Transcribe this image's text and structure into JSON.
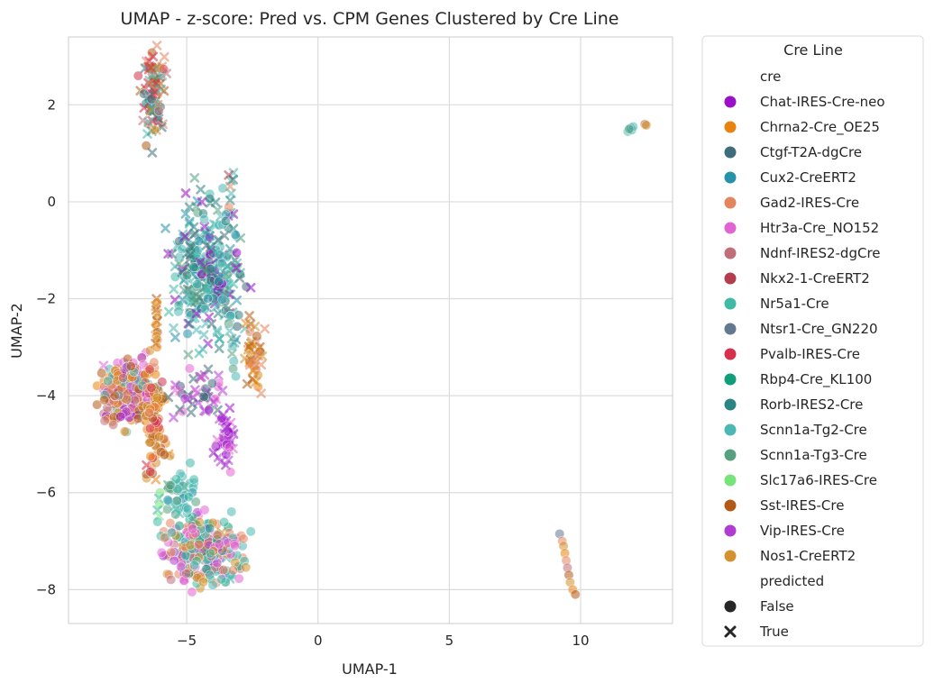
{
  "chart_data": {
    "type": "scatter",
    "title": "UMAP - z-score: Pred vs. CPM Genes Clustered by Cre Line",
    "xlabel": "UMAP-1",
    "ylabel": "UMAP-2",
    "xlim": [
      -9.5,
      13.5
    ],
    "ylim": [
      -8.7,
      3.4
    ],
    "x_ticks": [
      -5,
      0,
      5,
      10
    ],
    "y_ticks": [
      -8,
      -6,
      -4,
      -2,
      0,
      2
    ],
    "x_tick_labels": [
      "−5",
      "0",
      "5",
      "10"
    ],
    "y_tick_labels": [
      "−8",
      "−6",
      "−4",
      "−2",
      "0",
      "2"
    ],
    "grid": true,
    "legend": {
      "title": "Cre Line",
      "placement": "outside right",
      "hue_header": "cre",
      "style_header": "predicted",
      "cre_lines": [
        {
          "name": "Chat-IRES-Cre-neo",
          "color": "#9b0fc9"
        },
        {
          "name": "Chrna2-Cre_OE25",
          "color": "#e98310"
        },
        {
          "name": "Ctgf-T2A-dgCre",
          "color": "#3f6e7a"
        },
        {
          "name": "Cux2-CreERT2",
          "color": "#2592aa"
        },
        {
          "name": "Gad2-IRES-Cre",
          "color": "#e3855e"
        },
        {
          "name": "Htr3a-Cre_NO152",
          "color": "#e164d3"
        },
        {
          "name": "Ndnf-IRES2-dgCre",
          "color": "#c06f7a"
        },
        {
          "name": "Nkx2-1-CreERT2",
          "color": "#b33c4d"
        },
        {
          "name": "Nr5a1-Cre",
          "color": "#3fbaa6"
        },
        {
          "name": "Ntsr1-Cre_GN220",
          "color": "#63798f"
        },
        {
          "name": "Pvalb-IRES-Cre",
          "color": "#d6304a"
        },
        {
          "name": "Rbp4-Cre_KL100",
          "color": "#0f9d7a"
        },
        {
          "name": "Rorb-IRES2-Cre",
          "color": "#2b8582"
        },
        {
          "name": "Scnn1a-Tg2-Cre",
          "color": "#4cb8b4"
        },
        {
          "name": "Scnn1a-Tg3-Cre",
          "color": "#58a07f"
        },
        {
          "name": "Slc17a6-IRES-Cre",
          "color": "#77e37b"
        },
        {
          "name": "Sst-IRES-Cre",
          "color": "#b35a17"
        },
        {
          "name": "Vip-IRES-Cre",
          "color": "#b13cd2"
        },
        {
          "name": "Nos1-CreERT2",
          "color": "#d4922e"
        }
      ],
      "predicted": [
        {
          "name": "False",
          "marker": "circle"
        },
        {
          "name": "True",
          "marker": "x"
        }
      ]
    },
    "clusters": [
      {
        "cx": -6.3,
        "cy": 2.2,
        "sx": 0.3,
        "sy": 0.6,
        "n": 90,
        "x_frac": 0.85,
        "colors": [
          "#3f6e7a",
          "#2b8582",
          "#4cb8b4",
          "#e3855e",
          "#c06f7a",
          "#d6304a",
          "#b35a17",
          "#d4922e"
        ]
      },
      {
        "cx": -4.2,
        "cy": -1.4,
        "sx": 0.9,
        "sy": 1.0,
        "n": 300,
        "x_frac": 0.7,
        "colors": [
          "#4cb8b4",
          "#2b8582",
          "#3fbaa6",
          "#58a07f",
          "#3f6e7a",
          "#2592aa",
          "#4cb8b4",
          "#9b0fc9"
        ]
      },
      {
        "cx": -2.5,
        "cy": -3.2,
        "sx": 0.25,
        "sy": 0.6,
        "n": 40,
        "x_frac": 0.8,
        "colors": [
          "#e98310",
          "#b35a17",
          "#e3855e",
          "#d4922e"
        ]
      },
      {
        "cx": -7.2,
        "cy": -3.9,
        "sx": 0.8,
        "sy": 0.45,
        "n": 260,
        "x_frac": 0.05,
        "colors": [
          "#e164d3",
          "#b13cd2",
          "#e3855e",
          "#d4922e",
          "#e98310",
          "#b35a17",
          "#4cb8b4",
          "#9b0fc9",
          "#c06f7a"
        ]
      },
      {
        "cx": -6.2,
        "cy": -4.6,
        "sx": 0.35,
        "sy": 0.9,
        "n": 80,
        "x_frac": 0.1,
        "colors": [
          "#b35a17",
          "#d4922e",
          "#e98310",
          "#e3855e",
          "#d6304a"
        ]
      },
      {
        "cx": -4.4,
        "cy": -7.2,
        "sx": 1.0,
        "sy": 0.45,
        "n": 280,
        "x_frac": 0.05,
        "colors": [
          "#e164d3",
          "#e3855e",
          "#4cb8b4",
          "#0f9d7a",
          "#d4922e",
          "#b13cd2",
          "#3fbaa6",
          "#c06f7a"
        ]
      },
      {
        "cx": -5.2,
        "cy": -6.0,
        "sx": 0.5,
        "sy": 0.35,
        "n": 45,
        "x_frac": 0.25,
        "colors": [
          "#4cb8b4",
          "#3fbaa6",
          "#2592aa",
          "#58a07f"
        ]
      },
      {
        "cx": -3.5,
        "cy": -4.9,
        "sx": 0.35,
        "sy": 0.5,
        "n": 35,
        "x_frac": 0.75,
        "colors": [
          "#e164d3",
          "#b13cd2",
          "#9b0fc9"
        ]
      },
      {
        "cx": -4.5,
        "cy": -3.9,
        "sx": 0.8,
        "sy": 0.35,
        "n": 45,
        "x_frac": 0.75,
        "colors": [
          "#e164d3",
          "#b13cd2",
          "#3f6e7a"
        ]
      }
    ],
    "strips": [
      {
        "x0": -6.1,
        "y0": -2.0,
        "x1": -6.2,
        "y1": -3.0,
        "n": 14,
        "colors": [
          "#b35a17",
          "#e98310",
          "#d4922e"
        ]
      },
      {
        "x0": -6.0,
        "y0": -6.0,
        "x1": -6.1,
        "y1": -6.6,
        "n": 6,
        "colors": [
          "#77e37b",
          "#3fbaa6"
        ]
      },
      {
        "x0": -3.4,
        "y0": -2.2,
        "x1": -3.2,
        "y1": -3.6,
        "n": 10,
        "colors": [
          "#58a07f",
          "#4cb8b4"
        ]
      },
      {
        "x0": -3.2,
        "y0": 0.6,
        "x1": -3.5,
        "y1": -0.4,
        "n": 8,
        "colors": [
          "#4cb8b4",
          "#2b8582",
          "#e3855e"
        ]
      }
    ],
    "points": [
      {
        "x": 11.8,
        "y": 1.45,
        "c": "#4cb8b4",
        "m": "circle"
      },
      {
        "x": 11.9,
        "y": 1.52,
        "c": "#2592aa",
        "m": "circle"
      },
      {
        "x": 11.95,
        "y": 1.48,
        "c": "#3fbaa6",
        "m": "circle"
      },
      {
        "x": 12.0,
        "y": 1.55,
        "c": "#4cb8b4",
        "m": "circle"
      },
      {
        "x": 11.85,
        "y": 1.5,
        "c": "#58a07f",
        "m": "circle"
      },
      {
        "x": 12.45,
        "y": 1.6,
        "c": "#b35a17",
        "m": "circle"
      },
      {
        "x": 12.5,
        "y": 1.58,
        "c": "#d4922e",
        "m": "circle"
      },
      {
        "x": 9.2,
        "y": -6.85,
        "c": "#63798f",
        "m": "circle"
      },
      {
        "x": 9.3,
        "y": -7.0,
        "c": "#e3855e",
        "m": "circle"
      },
      {
        "x": 9.35,
        "y": -7.1,
        "c": "#d4922e",
        "m": "circle"
      },
      {
        "x": 9.4,
        "y": -7.25,
        "c": "#e98310",
        "m": "circle"
      },
      {
        "x": 9.45,
        "y": -7.4,
        "c": "#e3855e",
        "m": "circle"
      },
      {
        "x": 9.5,
        "y": -7.55,
        "c": "#c06f7a",
        "m": "circle"
      },
      {
        "x": 9.55,
        "y": -7.7,
        "c": "#b35a17",
        "m": "circle"
      },
      {
        "x": 9.6,
        "y": -7.85,
        "c": "#d4922e",
        "m": "circle"
      },
      {
        "x": 9.7,
        "y": -8.0,
        "c": "#e98310",
        "m": "circle"
      },
      {
        "x": 9.8,
        "y": -8.1,
        "c": "#b35a17",
        "m": "circle"
      },
      {
        "x": -3.1,
        "y": -1.05,
        "c": "#9b0fc9",
        "m": "circle"
      },
      {
        "x": -3.4,
        "y": 0.55,
        "c": "#b33c4d",
        "m": "x"
      },
      {
        "x": -5.5,
        "y": -4.45,
        "c": "#b13cd2",
        "m": "x"
      },
      {
        "x": -3.6,
        "y": -4.4,
        "c": "#b13cd2",
        "m": "x"
      },
      {
        "x": -4.8,
        "y": -8.05,
        "c": "#e164d3",
        "m": "circle"
      },
      {
        "x": -8.0,
        "y": -3.7,
        "c": "#4cb8b4",
        "m": "circle"
      }
    ]
  }
}
